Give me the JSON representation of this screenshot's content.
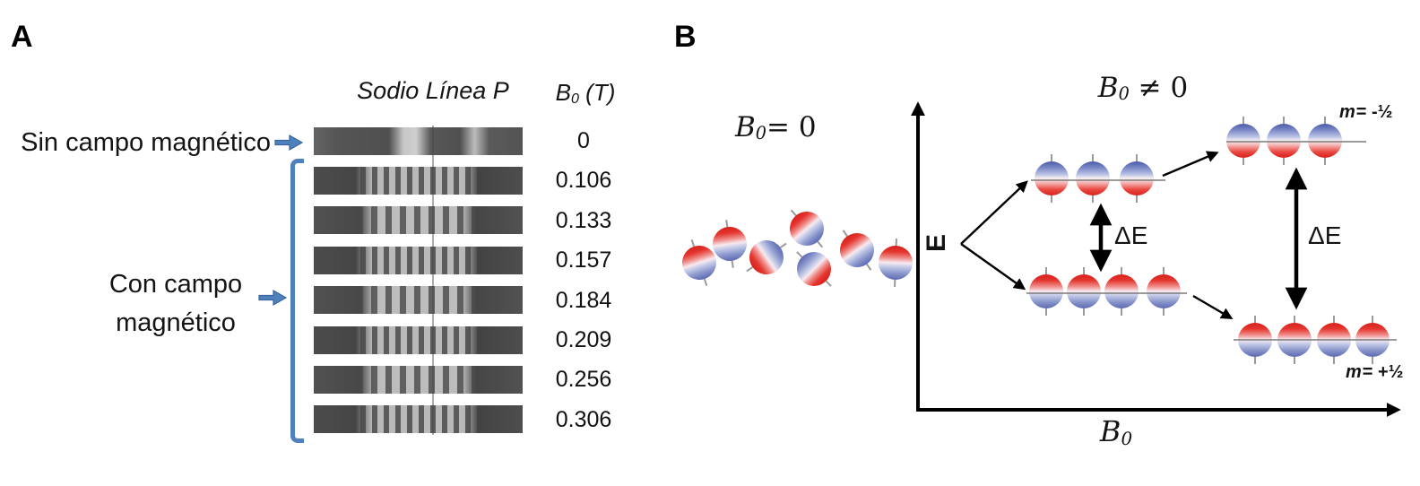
{
  "figure": {
    "panel_a": {
      "label": "A",
      "spectrum_header": "Sodio Línea P",
      "field_header": {
        "base": "B",
        "sub": "0",
        "rest": " (T)"
      },
      "no_field_label": "Sin campo magnético",
      "with_field_label_line1": "Con campo",
      "with_field_label_line2": "magnético",
      "field_values": [
        "0",
        "0.106",
        "0.133",
        "0.157",
        "0.184",
        "0.209",
        "0.256",
        "0.306"
      ]
    },
    "panel_b": {
      "label": "B",
      "no_field_condition": {
        "base": "B",
        "sub": "0",
        "rest": "= 0"
      },
      "field_condition": {
        "base": "B",
        "sub": "0",
        "rest": " ≠ 0"
      },
      "energy_axis_label": "E",
      "field_axis_label": {
        "base": "B",
        "sub": "0",
        "rest": ""
      },
      "delta_e_label_left": "ΔE",
      "delta_e_label_right": "ΔE",
      "m_upper_label": {
        "m": "m",
        "rest": "= -½"
      },
      "m_lower_label": {
        "m": "m",
        "rest": "= +½"
      },
      "random_spins": {
        "count": 7,
        "rotations_deg": [
          -18,
          -8,
          -125,
          -40,
          135,
          -35,
          2
        ]
      },
      "levels": [
        {
          "id": "upper_left",
          "spheres": 3,
          "top_color": "blue"
        },
        {
          "id": "upper_right",
          "spheres": 3,
          "top_color": "blue"
        },
        {
          "id": "lower_left",
          "spheres": 4,
          "top_color": "red"
        },
        {
          "id": "lower_right",
          "spheres": 4,
          "top_color": "red"
        }
      ],
      "colors": {
        "sphere_red": "#d8201b",
        "sphere_blue": "#4a5aa8",
        "accent_blue": "#4f81bd"
      }
    }
  }
}
